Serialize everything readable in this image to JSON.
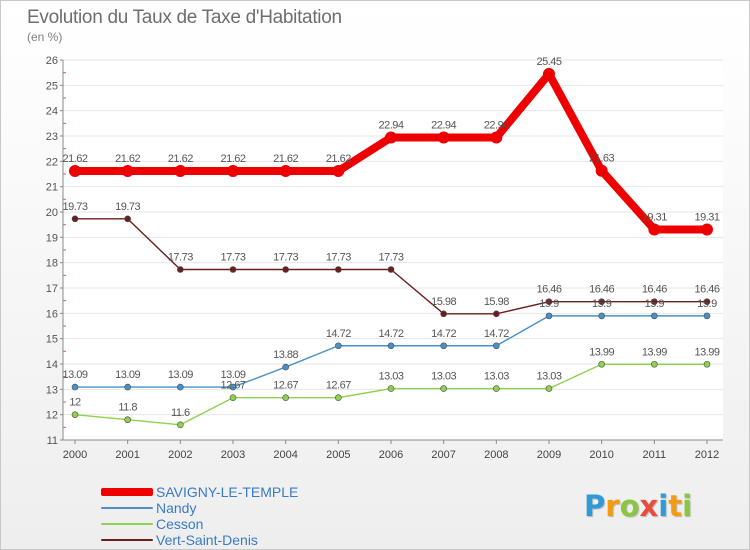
{
  "title": "Evolution du Taux de Taxe d'Habitation",
  "subtitle": "(en %)",
  "logo": {
    "letters": [
      "P",
      "r",
      "o",
      "x",
      "i",
      "t",
      "i"
    ],
    "colors": [
      "#2e9bd6",
      "#f39c12",
      "#8cc63f",
      "#e74c3c",
      "#2e9bd6",
      "#f39c12",
      "#8cc63f"
    ]
  },
  "chart_data": {
    "type": "line",
    "title": "Evolution du Taux de Taxe d'Habitation",
    "ylabel": "(en %)",
    "xlabel": "",
    "x": [
      "2000",
      "2001",
      "2002",
      "2003",
      "2004",
      "2005",
      "2006",
      "2007",
      "2008",
      "2009",
      "2010",
      "2011",
      "2012"
    ],
    "ylim": [
      11,
      26
    ],
    "yticks": [
      11,
      12,
      13,
      14,
      15,
      16,
      17,
      18,
      19,
      20,
      21,
      22,
      23,
      24,
      25,
      26
    ],
    "grid": true,
    "legend_position": "bottom-left",
    "series": [
      {
        "name": "SAVIGNY-LE-TEMPLE",
        "color": "#ee0000",
        "emphasis": "thick",
        "values": [
          21.62,
          21.62,
          21.62,
          21.62,
          21.62,
          21.62,
          22.94,
          22.94,
          22.94,
          25.45,
          21.63,
          19.31,
          19.31
        ],
        "labels": [
          "21.62",
          "21.62",
          "21.62",
          "21.62",
          "21.62",
          "21.62",
          "22.94",
          "22.94",
          "22.94",
          "25.45",
          "21.63",
          "19.31",
          "19.31"
        ]
      },
      {
        "name": "Nandy",
        "color": "#4a90c8",
        "emphasis": "thin",
        "values": [
          13.09,
          13.09,
          13.09,
          13.09,
          13.88,
          14.72,
          14.72,
          14.72,
          14.72,
          15.9,
          15.9,
          15.9,
          15.9
        ],
        "labels": [
          "13.09",
          "13.09",
          "13.09",
          "13.09",
          "13.88",
          "14.72",
          "14.72",
          "14.72",
          "14.72",
          "15.9",
          "15.9",
          "15.9",
          "15.9"
        ]
      },
      {
        "name": "Cesson",
        "color": "#8fd14f",
        "emphasis": "thin",
        "values": [
          12,
          11.8,
          11.6,
          12.67,
          12.67,
          12.67,
          13.03,
          13.03,
          13.03,
          13.03,
          13.99,
          13.99,
          13.99
        ],
        "labels": [
          "12",
          "11.8",
          "11.6",
          "12.67",
          "12.67",
          "12.67",
          "13.03",
          "13.03",
          "13.03",
          "13.03",
          "13.99",
          "13.99",
          "13.99"
        ]
      },
      {
        "name": "Vert-Saint-Denis",
        "color": "#6b1e1e",
        "emphasis": "thin",
        "values": [
          19.73,
          19.73,
          17.73,
          17.73,
          17.73,
          17.73,
          17.73,
          15.98,
          15.98,
          16.46,
          16.46,
          16.46,
          16.46
        ],
        "labels": [
          "19.73",
          "19.73",
          "17.73",
          "17.73",
          "17.73",
          "17.73",
          "17.73",
          "15.98",
          "15.98",
          "16.46",
          "16.46",
          "16.46",
          "16.46"
        ]
      }
    ]
  }
}
